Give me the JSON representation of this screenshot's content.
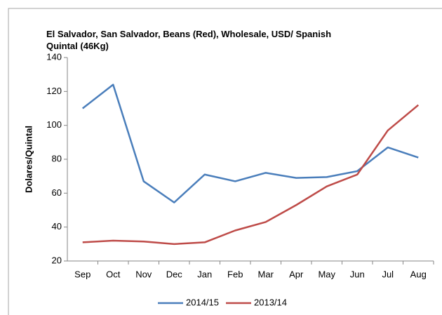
{
  "chart_data": {
    "type": "line",
    "title": "El Salvador, San Salvador, Beans (Red), Wholesale, USD/ Spanish Quintal (46Kg)",
    "y_label": "Dolares/Quintal",
    "categories": [
      "Sep",
      "Oct",
      "Nov",
      "Dec",
      "Jan",
      "Feb",
      "Mar",
      "Apr",
      "May",
      "Jun",
      "Jul",
      "Aug"
    ],
    "series": [
      {
        "name": "2014/15",
        "color": "#4a7ebb",
        "values": [
          110,
          124,
          67,
          54.5,
          71,
          67,
          72,
          69,
          69.5,
          73,
          87,
          81
        ]
      },
      {
        "name": "2013/14",
        "color": "#be4b48",
        "values": [
          31,
          32,
          31.5,
          30,
          31,
          38,
          43,
          53,
          64,
          71,
          97,
          112
        ]
      }
    ],
    "ylim": [
      20,
      140
    ],
    "yticks": [
      20,
      40,
      60,
      80,
      100,
      120,
      140
    ],
    "grid": false,
    "legend": "bottom"
  }
}
